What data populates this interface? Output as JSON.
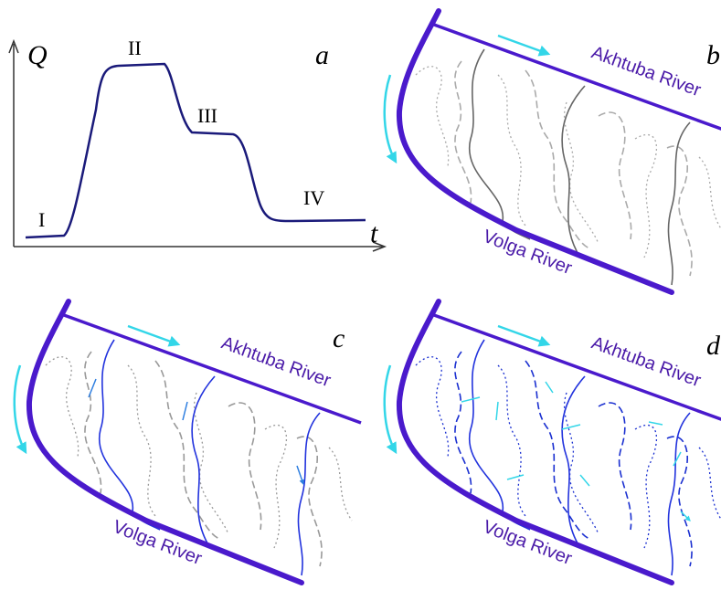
{
  "panel_a": {
    "y_axis": "Q",
    "x_axis": "t",
    "letter": "a",
    "phases": [
      "I",
      "II",
      "III",
      "IV"
    ]
  },
  "panels": [
    {
      "letter": "b",
      "upper_river": "Akhtuba River",
      "lower_river": "Volga River"
    },
    {
      "letter": "c",
      "upper_river": "Akhtuba River",
      "lower_river": "Volga River"
    },
    {
      "letter": "d",
      "upper_river": "Akhtuba River",
      "lower_river": "Volga River"
    }
  ]
}
